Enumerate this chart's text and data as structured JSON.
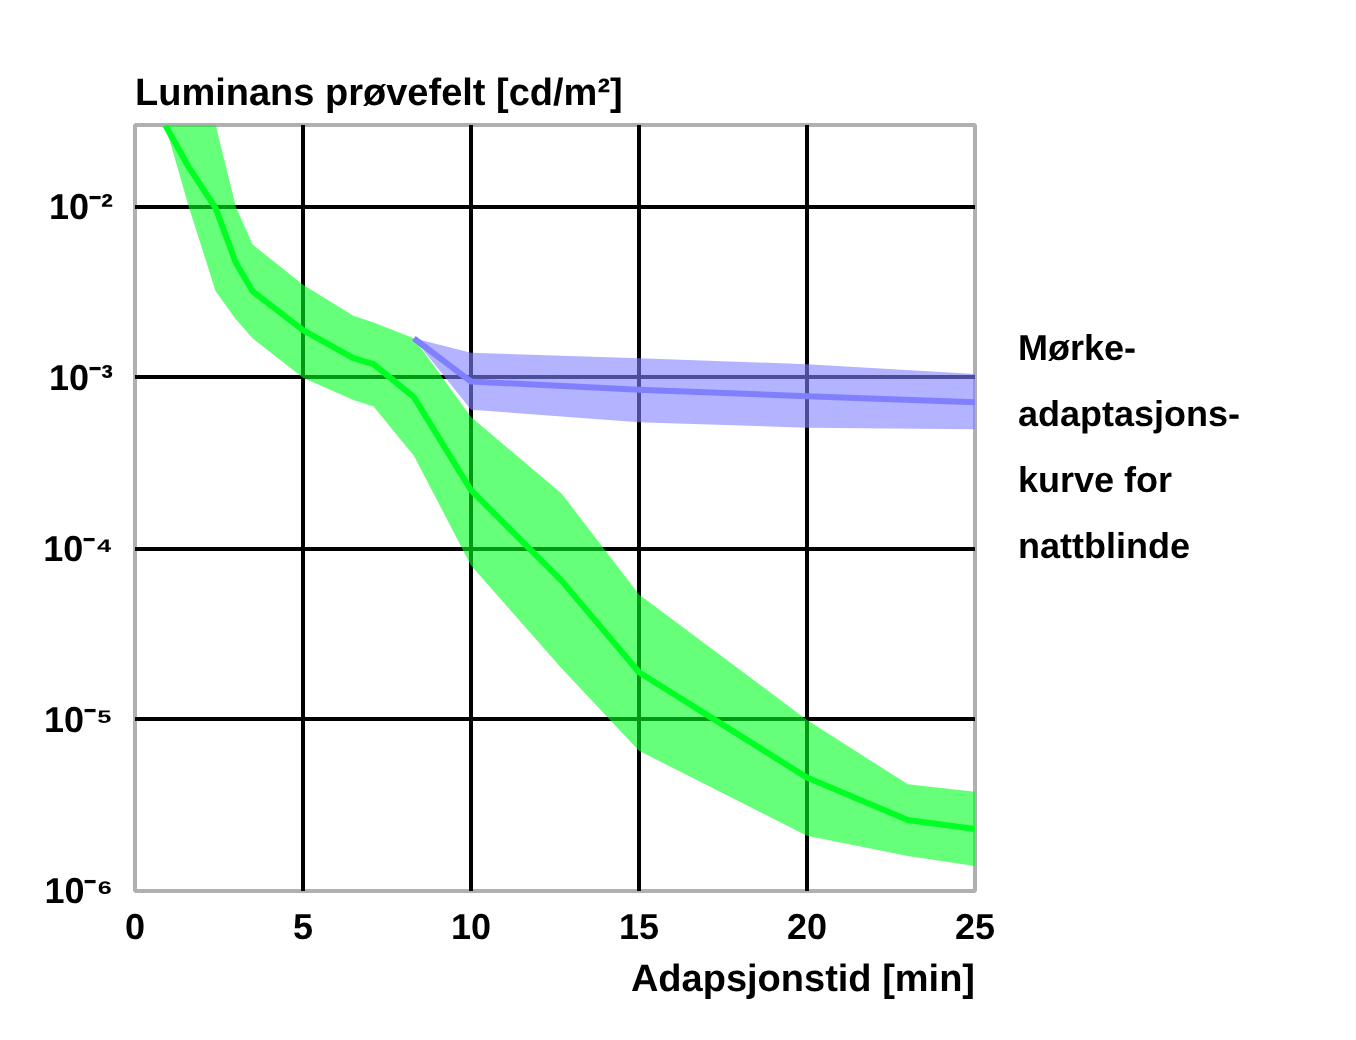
{
  "chart_data": {
    "type": "line",
    "title": "Luminans prøvefelt [cd/m²]",
    "xlabel": "Adapsjonstid [min]",
    "xlim": [
      0,
      25
    ],
    "ylim": [
      1e-06,
      0.03
    ],
    "log": true,
    "grid": true,
    "xticks": [
      0,
      5,
      10,
      15,
      20,
      25
    ],
    "yticks": [
      {
        "value": 1e-06,
        "label": "10⁻⁶"
      },
      {
        "value": 1e-05,
        "label": "10⁻⁵"
      },
      {
        "value": 0.0001,
        "label": "10⁻⁴"
      },
      {
        "value": 0.001,
        "label": "10⁻³"
      },
      {
        "value": 0.01,
        "label": "10⁻²"
      }
    ],
    "series": [
      {
        "color": "#00ff22",
        "x": [
          0.9,
          1.6,
          2.4,
          3,
          3.5,
          5,
          6.5,
          7.1,
          8.3,
          10,
          12.7,
          15,
          20,
          23,
          25
        ],
        "values": [
          0.03,
          0.017,
          0.0098,
          0.0047,
          0.0032,
          0.0019,
          0.0013,
          0.0012,
          0.00077,
          0.00022,
          6.5e-05,
          1.9e-05,
          4.6e-06,
          2.6e-06,
          2.3e-06
        ],
        "upper": [
          0.03,
          0.03,
          0.03,
          0.01,
          0.006,
          0.0035,
          0.0023,
          0.0021,
          0.0017,
          0.00059,
          0.00021,
          5.4e-05,
          1e-05,
          4.2e-06,
          3.8e-06
        ],
        "lower": [
          0.03,
          0.01,
          0.0032,
          0.0022,
          0.0017,
          0.001,
          0.00074,
          0.00068,
          0.00035,
          8e-05,
          2e-05,
          6.6e-06,
          2.1e-06,
          1.6e-06,
          1.4e-06
        ]
      },
      {
        "name": "Mørke-\nadaptasjons-\nkurve for\nnattblinde",
        "color": "#8080ff",
        "x": [
          8.3,
          10,
          15,
          20,
          25
        ],
        "values": [
          0.0017,
          0.00095,
          0.00085,
          0.00078,
          0.00072
        ],
        "upper": [
          0.0017,
          0.0014,
          0.0013,
          0.0012,
          0.00105
        ],
        "lower": [
          0.0017,
          0.00065,
          0.00055,
          0.00051,
          0.0005
        ]
      }
    ]
  }
}
